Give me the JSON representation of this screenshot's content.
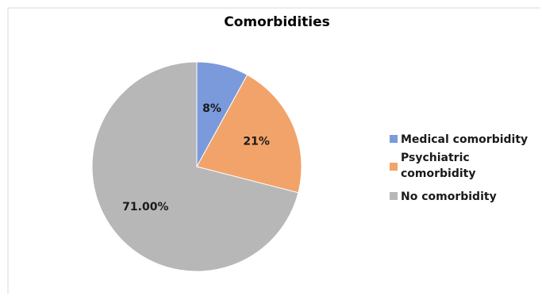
{
  "chart_data": {
    "type": "pie",
    "title": "Comorbidities",
    "slices": [
      {
        "label": "Medical comorbidity",
        "value": 8,
        "data_label": "8%",
        "color": "#4472C4",
        "fill_color": "#7A9ADB"
      },
      {
        "label": "Psychiatric comorbidity",
        "value": 21,
        "data_label": "21%",
        "color": "#ED7D31",
        "fill_color": "#F2A36A"
      },
      {
        "label": "No comorbidity",
        "value": 71,
        "data_label": "71.00%",
        "color": "#A5A5A5",
        "fill_color": "#B7B7B7"
      }
    ],
    "legend_placement": "right"
  }
}
